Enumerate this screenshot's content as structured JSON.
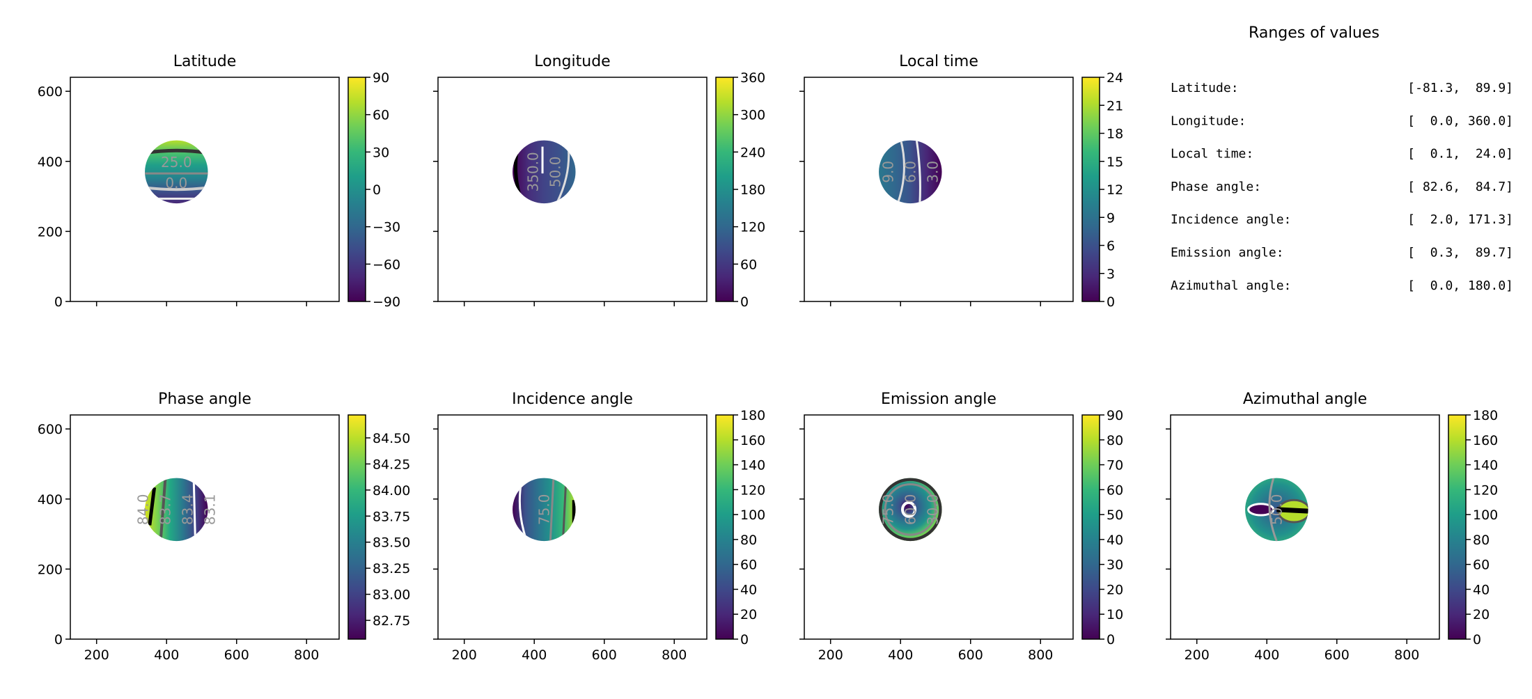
{
  "chart_data": [
    {
      "type": "heatmap",
      "title": "Latitude",
      "xlim": [
        125,
        893
      ],
      "ylim": [
        0,
        640
      ],
      "yticks": [
        "0",
        "200",
        "400",
        "600"
      ],
      "xticks": [
        "200",
        "400",
        "600",
        "800"
      ],
      "show_xtick_labels": false,
      "show_ytick_labels": true,
      "colorbar": {
        "range": [
          -90,
          90
        ],
        "ticks": [
          "−90",
          "−60",
          "−30",
          "0",
          "30",
          "60",
          "90"
        ],
        "tick_values": [
          -90,
          -60,
          -30,
          0,
          30,
          60,
          90
        ]
      },
      "contour_labels": [
        "25.0",
        "0.0"
      ],
      "disk_center": [
        428,
        370
      ],
      "disk_radius": 90,
      "colormap": "viridis"
    },
    {
      "type": "heatmap",
      "title": "Longitude",
      "xlim": [
        125,
        893
      ],
      "ylim": [
        0,
        640
      ],
      "yticks": [
        "0",
        "200",
        "400",
        "600"
      ],
      "xticks": [
        "200",
        "400",
        "600",
        "800"
      ],
      "show_xtick_labels": false,
      "show_ytick_labels": false,
      "colorbar": {
        "range": [
          0,
          360
        ],
        "ticks": [
          "0",
          "60",
          "120",
          "180",
          "240",
          "300",
          "360"
        ],
        "tick_values": [
          0,
          60,
          120,
          180,
          240,
          300,
          360
        ]
      },
      "contour_labels": [
        "350.0",
        "50.0"
      ],
      "disk_center": [
        428,
        370
      ],
      "disk_radius": 90,
      "colormap": "viridis"
    },
    {
      "type": "heatmap",
      "title": "Local time",
      "xlim": [
        125,
        893
      ],
      "ylim": [
        0,
        640
      ],
      "yticks": [
        "0",
        "200",
        "400",
        "600"
      ],
      "xticks": [
        "200",
        "400",
        "600",
        "800"
      ],
      "show_xtick_labels": false,
      "show_ytick_labels": false,
      "colorbar": {
        "range": [
          0,
          24
        ],
        "ticks": [
          "0",
          "3",
          "6",
          "9",
          "12",
          "15",
          "18",
          "21",
          "24"
        ],
        "tick_values": [
          0,
          3,
          6,
          9,
          12,
          15,
          18,
          21,
          24
        ]
      },
      "contour_labels": [
        "9.0",
        "6.0",
        "3.0"
      ],
      "disk_center": [
        428,
        370
      ],
      "disk_radius": 90,
      "colormap": "viridis"
    },
    {
      "type": "heatmap",
      "title": "Phase angle",
      "xlim": [
        125,
        893
      ],
      "ylim": [
        0,
        640
      ],
      "yticks": [
        "0",
        "200",
        "400",
        "600"
      ],
      "xticks": [
        "200",
        "400",
        "600",
        "800"
      ],
      "show_xtick_labels": true,
      "show_ytick_labels": true,
      "colorbar": {
        "range": [
          82.57,
          84.72
        ],
        "ticks": [
          "82.75",
          "83.00",
          "83.25",
          "83.50",
          "83.75",
          "84.00",
          "84.25",
          "84.50"
        ],
        "tick_values": [
          82.75,
          83.0,
          83.25,
          83.5,
          83.75,
          84.0,
          84.25,
          84.5
        ]
      },
      "contour_labels": [
        "84.0",
        "83.7",
        "83.4",
        "83.1"
      ],
      "disk_center": [
        428,
        370
      ],
      "disk_radius": 90,
      "colormap": "viridis"
    },
    {
      "type": "heatmap",
      "title": "Incidence angle",
      "xlim": [
        125,
        893
      ],
      "ylim": [
        0,
        640
      ],
      "yticks": [
        "0",
        "200",
        "400",
        "600"
      ],
      "xticks": [
        "200",
        "400",
        "600",
        "800"
      ],
      "show_xtick_labels": true,
      "show_ytick_labels": false,
      "colorbar": {
        "range": [
          0,
          180
        ],
        "ticks": [
          "0",
          "20",
          "40",
          "60",
          "80",
          "100",
          "120",
          "140",
          "160",
          "180"
        ],
        "tick_values": [
          0,
          20,
          40,
          60,
          80,
          100,
          120,
          140,
          160,
          180
        ]
      },
      "contour_labels": [
        "75.0"
      ],
      "disk_center": [
        428,
        370
      ],
      "disk_radius": 90,
      "colormap": "viridis"
    },
    {
      "type": "heatmap",
      "title": "Emission angle",
      "xlim": [
        125,
        893
      ],
      "ylim": [
        0,
        640
      ],
      "yticks": [
        "0",
        "200",
        "400",
        "600"
      ],
      "xticks": [
        "200",
        "400",
        "600",
        "800"
      ],
      "show_xtick_labels": true,
      "show_ytick_labels": false,
      "colorbar": {
        "range": [
          0,
          90
        ],
        "ticks": [
          "0",
          "10",
          "20",
          "30",
          "40",
          "50",
          "60",
          "70",
          "80",
          "90"
        ],
        "tick_values": [
          0,
          10,
          20,
          30,
          40,
          50,
          60,
          70,
          80,
          90
        ]
      },
      "contour_labels": [
        "75.0",
        "60.0",
        "30.0"
      ],
      "disk_center": [
        428,
        370
      ],
      "disk_radius": 90,
      "colormap": "viridis"
    },
    {
      "type": "heatmap",
      "title": "Azimuthal angle",
      "xlim": [
        125,
        893
      ],
      "ylim": [
        0,
        640
      ],
      "yticks": [
        "0",
        "200",
        "400",
        "600"
      ],
      "xticks": [
        "200",
        "400",
        "600",
        "800"
      ],
      "show_xtick_labels": true,
      "show_ytick_labels": false,
      "colorbar": {
        "range": [
          0,
          180
        ],
        "ticks": [
          "0",
          "20",
          "40",
          "60",
          "80",
          "100",
          "120",
          "140",
          "160",
          "180"
        ],
        "tick_values": [
          0,
          20,
          40,
          60,
          80,
          100,
          120,
          140,
          160,
          180
        ]
      },
      "contour_labels": [
        "50.0"
      ],
      "disk_center": [
        428,
        370
      ],
      "disk_radius": 90,
      "colormap": "viridis"
    }
  ],
  "ranges_panel": {
    "title": "Ranges of values",
    "rows": [
      {
        "label": "Latitude:",
        "value": "[-81.3,  89.9]"
      },
      {
        "label": "Longitude:",
        "value": "[  0.0, 360.0]"
      },
      {
        "label": "Local time:",
        "value": "[  0.1,  24.0]"
      },
      {
        "label": "Phase angle:",
        "value": "[ 82.6,  84.7]"
      },
      {
        "label": "Incidence angle:",
        "value": "[  2.0, 171.3]"
      },
      {
        "label": "Emission angle:",
        "value": "[  0.3,  89.7]"
      },
      {
        "label": "Azimuthal angle:",
        "value": "[  0.0, 180.0]"
      }
    ]
  },
  "colors": {
    "viridis": [
      "#440154",
      "#482878",
      "#3e4989",
      "#31688e",
      "#26828e",
      "#1f9e89",
      "#35b779",
      "#6ece58",
      "#b5de2b",
      "#fde725"
    ]
  }
}
